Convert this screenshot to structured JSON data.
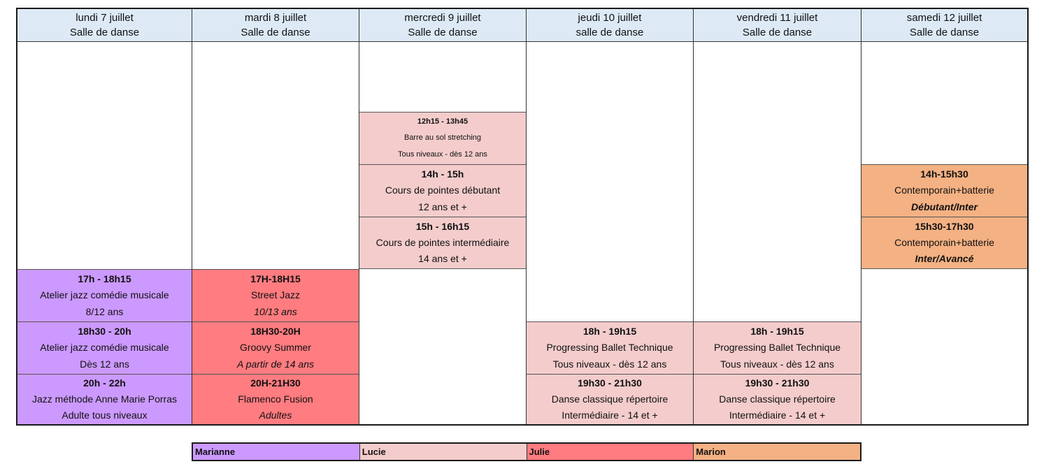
{
  "days": [
    {
      "day": "lundi 7 juillet",
      "room": "Salle de danse"
    },
    {
      "day": "mardi 8 juillet",
      "room": "Salle de danse"
    },
    {
      "day": "mercredi 9 juillet",
      "room": "Salle de danse"
    },
    {
      "day": "jeudi 10 juillet",
      "room": "salle de danse"
    },
    {
      "day": "vendredi 11 juillet",
      "room": "Salle de danse"
    },
    {
      "day": "samedi 12 juillet",
      "room": "Salle de danse"
    }
  ],
  "classes": {
    "mon1": {
      "time": "17h - 18h15",
      "name": "Atelier jazz comédie musicale",
      "level": "8/12 ans"
    },
    "mon2": {
      "time": "18h30 - 20h",
      "name": "Atelier jazz comédie musicale",
      "level": "Dès 12 ans"
    },
    "mon3": {
      "time": "20h - 22h",
      "name": "Jazz méthode Anne Marie Porras",
      "level": "Adulte tous niveaux"
    },
    "tue1": {
      "time": "17H-18H15",
      "name": "Street Jazz",
      "level": "10/13 ans"
    },
    "tue2": {
      "time": "18H30-20H",
      "name": "Groovy Summer",
      "level": "A partir de 14 ans"
    },
    "tue3": {
      "time": "20H-21H30",
      "name": "Flamenco Fusion",
      "level": "Adultes"
    },
    "wed1": {
      "time": "12h15 - 13h45",
      "name": "Barre au sol stretching",
      "level": "Tous niveaux - dès 12 ans"
    },
    "wed2": {
      "time": "14h - 15h",
      "name": "Cours de pointes débutant",
      "level": "12 ans et +"
    },
    "wed3": {
      "time": "15h - 16h15",
      "name": "Cours de pointes intermédiaire",
      "level": "14 ans et +"
    },
    "thu1": {
      "time": "18h - 19h15",
      "name": "Progressing Ballet Technique",
      "level": "Tous niveaux - dès 12 ans"
    },
    "thu2": {
      "time": "19h30 - 21h30",
      "name": "Danse classique répertoire",
      "level": "Intermédiaire - 14 et +"
    },
    "fri1": {
      "time": "18h - 19h15",
      "name": "Progressing Ballet Technique",
      "level": "Tous niveaux - dès 12 ans"
    },
    "fri2": {
      "time": "19h30 - 21h30",
      "name": "Danse classique répertoire",
      "level": "Intermédiaire - 14 et +"
    },
    "sat1": {
      "time": "14h-15h30",
      "name": "Contemporain+batterie",
      "level": "Débutant/Inter"
    },
    "sat2": {
      "time": "15h30-17h30",
      "name": "Contemporain+batterie",
      "level": "Inter/Avancé"
    }
  },
  "legend": [
    "Marianne",
    "Lucie",
    "Julie",
    "Marion"
  ],
  "colors": {
    "Marianne": "#cc99ff",
    "Lucie": "#f4cccc",
    "Julie": "#ff7c80",
    "Marion": "#f4b183",
    "header": "#ddeaf6"
  }
}
